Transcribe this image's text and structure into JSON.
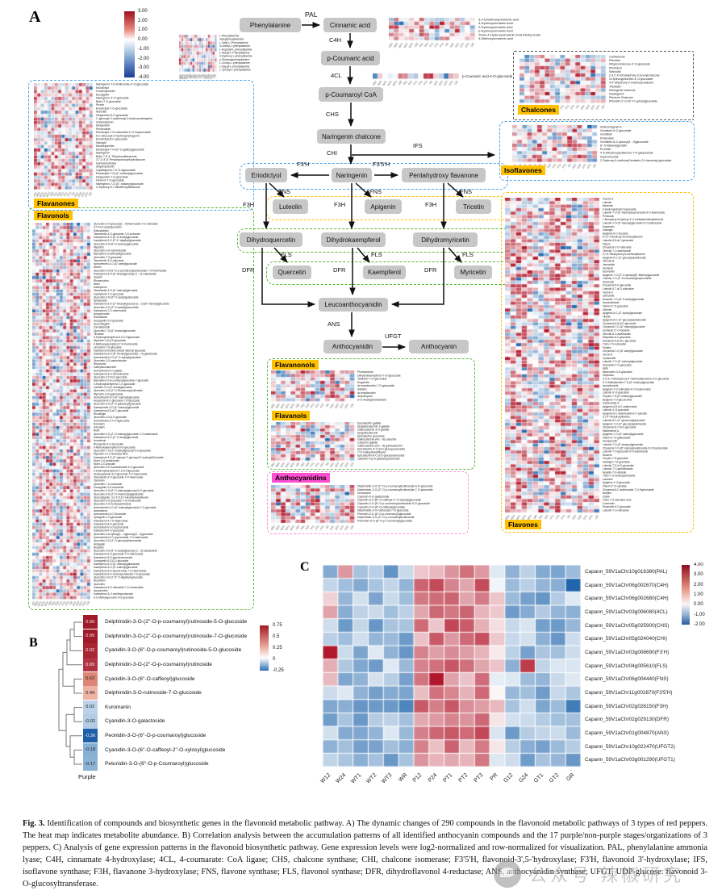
{
  "samples": [
    "W12",
    "W24",
    "WT1",
    "WT2",
    "WT3",
    "WR",
    "P12",
    "P24",
    "PT1",
    "PT2",
    "PT3",
    "PR",
    "G12",
    "G24",
    "GT1",
    "GT2",
    "GR"
  ],
  "panel_a": {
    "label": "A",
    "colorbar_ticks": [
      "3.00",
      "2.00",
      "1.00",
      "0.00",
      "-1.00",
      "-2.00",
      "-3.00",
      "-4.00"
    ],
    "nodes": {
      "phenylalanine": "Phenylalanine",
      "cinnamic": "Cinnamic acid",
      "pcoumaric": "p-Coumaric acid",
      "pcoumaroyl": "p-Coumaroyl CoA",
      "nar_chalcone": "Naringenin chalcone",
      "eriodictyol": "Eriodictyol",
      "naringenin": "Naringenin",
      "pentahydroxy": "Pentahydroxy flavanone",
      "luteolin": "Luteolin",
      "apigenin": "Apigenin",
      "tricetin": "Tricetin",
      "dhq": "Dihydroquercetin",
      "dhk": "Dihydrokaempferol",
      "dhm": "Dihydromyricetin",
      "quercetin": "Quercetin",
      "kaempferol": "Kaempferol",
      "myricetin": "Myricetin",
      "leuco": "Leucoanthocyanidin",
      "anthocyanidin": "Anthocyanidin",
      "anthocyanin": "Anthocyanin"
    },
    "enzymes": {
      "pal": "PAL",
      "c4h": "C4H",
      "fourcl": "4CL",
      "chs": "CHS",
      "chi": "CHI",
      "ifs": "IFS",
      "f3ph": "F3'H",
      "f35h": "F3'5'H",
      "fns": "FNS",
      "f3h": "F3H",
      "fls": "FLS",
      "dfr": "DFR",
      "ans": "ANS",
      "ufgt": "UFGT"
    },
    "heatmaps": {
      "phenylalanine": {
        "rows": [
          "L-Phenylalanine",
          "Glycylphenylalanine",
          "L-Valyl-L-Phenylalanine",
          "N-Acetyl-L-phenylalanine",
          "L-Aspartyl-L-phenylalanine",
          "L-Alanyl-L-Phenylalanine",
          "3-Hydroxy-L-phenylalanine",
          "γ-Glutamylphenylalanine",
          "L-Leucyl-L-phenylalanine",
          "L-Glycyl-L-phenylalanine",
          "L-Tyrosyl-L-phenylalanine"
        ]
      },
      "cinnamic": {
        "rows": [
          "3,4-Dimethoxycinnamic acid",
          "3-Hydroxycinnamic Acid",
          "2-Hydroxycinnamic acid",
          "p-Hydroxycinnamic Acid",
          "Trans-4-Hydroxycinnamic Acid Methyl Ester",
          "4-Methoxycinnamic acid"
        ]
      },
      "pcoumaric_glucoside": {
        "rows": [
          "p-Coumaric acid-4-O-glucoside"
        ]
      },
      "flavanones": {
        "title": "Flavanones",
        "rows": [
          "Naringenin-7-O-Rutinoside-4'-O-glucoside",
          "Eriodictyol",
          "Choerospondin",
          "Eucalyptin",
          "Naringenin-4'-O-glucoside",
          "Butin-7-O-glucoside",
          "Prunin",
          "Eriodictyol-7-O-glucoside",
          "Narirutin",
          "Hesperetin-5-O-glucoside",
          "C-glucosyl-C-arabinosyl-2-hydroxynaringenin",
          "Isohemiphloin",
          "Hesperetin",
          "Persicoside",
          "Eriodictyol-7-O-rutinoside-4'-O-Sophoroside",
          "6-C-Glucosyl-2-Hydroxynaringenin",
          "Eriodictyol-8-C-glucoside",
          "Naringin",
          "Neohesperidin",
          "Eriodictyol-7-O-(6''-O-galloyl)glucoside",
          "Naringenin",
          "Butin 7,3',4'-Trihydroxyflavanone",
          "3,7,3',4',5'-Pentahydroxydihydroflavone",
          "Homoeriodictyol",
          "dihydroluteolin",
          "Liquiritigenin-7,4'-O-diglucoside",
          "Eriodictyol-7-O-(6''-malonyl)glucoside",
          "Hesperetin-7-O-glucoside",
          "Farrerol-7-O-glucoside",
          "Naringenin-7-O-(6''-malonyl)glucoside",
          "4'-Hydroxy-5,7-dimethoxyflavanone"
        ]
      },
      "flavonols": {
        "title": "Flavonols",
        "rows": [
          "Quercetin-3-O-glucosyl(1→4)rhamnoside-7-O-rutinoside",
          "3,7-Di-O-acetylquercetin",
          "Natsudaidain",
          "Tamarixetin-3-O-glucoside-7-O-sulfonate",
          "Kaempferol-3-O-(6''-O-acetyl)glucoside",
          "Kaempferol-3-O-(2'',6''-digalloyl)glucoside",
          "Quercetin-3-O-(6''-O-acetoxy)glucoside",
          "Myricitrin",
          "Quercetin-3-O-robinobioside",
          "kaempferol-3-caffeoyldiglucoside",
          "Quercetin-7-O-glucoside",
          "Tamarixetin-3-O-rutinoside",
          "Isorhamnetin-3-O-(6''-acetyl)glucoside",
          "Afzelin",
          "Quercetin-3-O-(6''-O-p-coumaroyl)sophoroside-7-O-rhamnoside",
          "Kaempferol-3-O-(6''-Acetyl)glucosyl-(1→3)-Galactoside",
          "Hyperin",
          "Rhamnocitrin",
          "Morin",
          "Kaempferol",
          "Tamarixetin-3-O-(6''-malonyl)glucoside",
          "Kaempferol-7-O-glucoside",
          "Quercetin-3-O-(6''-O-acetyl)galactoside",
          "Spiraeoside",
          "Kaempferol-3-O-(2''-feruloyl)glucosyl-(1→2)-(6''-malonyl)glucoside",
          "Quercetin-3-O-(2''-O-acetyl)glucuronide",
          "Kaempferol-7-O-rhamnoside",
          "Isohyperoside",
          "Rotundianin",
          "Gossypetin-3-O-glucoside",
          "Quercetagitrin",
          "Cannabiscitrin",
          "Quercetin-7-O-(6''-malonyl)glucoside",
          "Tiliroside",
          "6-Hydroxykaempferol-3,6-O-Diglucoside",
          "Myricetin-3-O-β-D-glucoside",
          "6-Methoxykaempferol-7-O-rhamnoside",
          "Limocitrin-7-O-glucoside",
          "Kaempferol feruloyl xylosyl malonyl glucoside",
          "Kaempferol-3-O-(6''-Feruloyl)glucosyl(1→4)-galactoside",
          "Isorhamnetin-3-O-(2''-O-xylosyl)glucoside",
          "Quercetin-3-O-sambubioside",
          "Reynoutrin",
          "Galloylisorhamnetin",
          "Isorhamnetin-3-O-gallate",
          "Kaempferol-3-O-sambubioside",
          "Quercetin-3,7-Di-O-glucoside",
          "kaempferol-3-p-coumaroylglucoside-7-glucoside",
          "6-Hydroxykaempferol-7-O-glucoside",
          "Laricitrin-3-O-(6''-acetyl)glucoside",
          "Quercetin-3-O-(2''-O-Rhamnosyl)rutinoside",
          "Myricetin-3-O-galactoside",
          "Isorhamnetin-3-O-(6''-malonyl)glucoside",
          "Hesperetin-8-C-glucoside-7-O-glucoside",
          "Quercetin-3-O-(2''-O-galactosyl)glucoside",
          "Kaempferide-3-O-(6''-malonyl)glucoside",
          "Kaempferol-6,8-di-C-glucoside",
          "Rhodiolgin",
          "Quercetin-3-O-β-D-glucoside",
          "Isorhamnetin-3,7-O-diglucoside",
          "Robinetin",
          "Avicularin",
          "Rutin",
          "Quercetin-3-O-(2''-O-malonyl)glucoside-7-O-arabinoside",
          "Kaempferol-3-O-(2''-O-acetyl)glucoside",
          "Amurensin",
          "Rhamnetin-3-O-Glucoside",
          "6-Methoxykaempferol-3-O-glucoside",
          "Quercetin-7-O-(2''-malonyl)glucosyl-5-O-glucoside",
          "Myricetin-3,7,3'-trimethyl ether",
          "Kaempferol-3-O-(2''-apiosyl-4''-glucosyl-6''-malonyl)Glucoside",
          "Morin-3-O-arabinoside",
          "Morin-3-O-lyxoside",
          "Quercetin-3-O-Sambubioside-5-O-glucoside",
          "6-Hydroxykaempferol-7,6-O-Diglucoside",
          "Sexangularetin-3-O-glucoside-7-O-rhamnoside",
          "Tamarixetin-3-O-glucoside-7-O-rhamnoside",
          "Tamarixin",
          "Quercetin-7-O-rutinoside",
          "Gossypetin-3-O-rutinoside",
          "Quercetin-3-O-(6''-O-malonyl)glucosyl-5-O-glucoside",
          "Quercetin-3-O-(2''-O-rhamnosyl)galactoside",
          "Quercetagetin, 3,3',4',5,6,7-Hexahydroxyflavone",
          "Quercetin-3-O-glucoside-7-O-rhamnoside",
          "Quercetin-3-O-neohesperidoside",
          "Isorhamnetin-3-O-(6''-malonyl)glucoside-7-O-glucoside",
          "Isotamarixin",
          "Isorhamnetin-3-O-Glucoside",
          "Syringetin-3-O-glucoside",
          "Kaempferol-3,7-O-diglucoside",
          "Kaempferol-3-O-glucoside",
          "Isorhamnetin-3-O-sophoroside",
          "Kaempferol-4'-O-glucoside",
          "Quercetin-3-O-xylosyl(1→2)glucosyl(1→2)glucoside",
          "Isorhamnetin-3-O-sophoroside-7-O-rhamnoside",
          "Quercetin-3-O-(4''-O-glucosyl)rhamnoside",
          "Astragalin",
          "Brassicin",
          "Quercetin-3-O-(6''-O-acetyl)glucosyl-(1→3)-Galactoside",
          "Kaempferol-3-O-glucoside-7-O-rhamnoside",
          "Kaempferol-3-O-glucorhamnoside",
          "Gossypetin-8-O-β-D-glucoside",
          "Kaempferol-3-O-(6''-malonyl)galactoside",
          "Kaempferol-3-O-(6''-malonyl)glucoside",
          "Kaempferol-3-O-sophoroside-7-O-rhamnoside",
          "Kaempferol-3-O-neohesperidoside-7-O-glucoside",
          "Quercetin-3-O-(2'',6''-O-digalloyl)-glucoside",
          "Nicotiflorin",
          "Quercitrin",
          "Kaempferol-3-O-rutinoside-7-O-rhamnoside",
          "Isoquercitrin",
          "Kaempferol-3-O-neohesperidoside",
          "6-C-Methylquercetin-3-O-glucoside"
        ]
      },
      "chalcones": {
        "title": "Chalcones",
        "rows": [
          "Carthamone",
          "Phloretin",
          "Dihydrochalcone-4'-O-glucoside",
          "Phloridzin",
          "Sieboldin",
          "2,4,2',4'-tetrahydroxy-3'-prenylchalcone",
          "3-Hydroxyphloretin-4'-O-glucoside",
          "4,4'-dihydroxy-2'-methoxychalcone",
          "Trilobatin",
          "Naringenin chalcone",
          "Davidigenin",
          "Phlorizin Chalcone",
          "Phloretin-2'-O-(6''-O-xylosyl)glucoside"
        ]
      },
      "isoflavones": {
        "title": "Isoflavones",
        "rows": [
          "Iristectorigenin A",
          "Genistein-8-C-glucoside",
          "Genistein",
          "Pratensein",
          "Genistein-8-C-apiosyl(1→6)glucoside",
          "6''-O-Malonylgenistin",
          "Prunetin",
          "4',5-Dihydroxyisoflavone-7-O-galactoside",
          "Sophoricoside",
          "2'-Hydroxy-5-methoxyGenistein-O-rhamnosyl-glucoside"
        ]
      },
      "flavones": {
        "title": "Flavones",
        "rows": [
          "Vicenin-3",
          "Luteolin",
          "Mearnsin",
          "6-Hydroxyluteolin 5-glucoside",
          "Luteolin-7-O-(6''-malonyl)sophoroside-5-O-arabinoside",
          "Persicarin",
          "7-Benzyloxy-5-hydroxy-3',4'-methylenedioxyflavonoid",
          "Luteolin-7-O-(6''-malonyl)glucoside-5-O-arabinoside",
          "Saponarin",
          "Galangin",
          "Apigenin-6-C-fucoside",
          "5,7,2'-Trihydroxy-6-methoxyflavone",
          "Luteolin-6,8-di-C-glucoside",
          "Vitexin",
          "Chryseriol-7-O-rutinoside",
          "Orientin-7-O-arabinoside",
          "5,7,8-Tetrahydroxy-6-methoxyflavone",
          "Apigenin-6-C-(2''-glucosyl)arabinoside",
          "Orientin B",
          "Jaceosidin",
          "Isovitexin",
          "Isoorientin",
          "Apigenin-7-O-(2''-O-apiosyl)(6''-Malonyl)glucoside",
          "Luteolin-7-O-(2''-O-rhamnosyl)sophoroside",
          "Diosmetin",
          "Chryseriol-5-O-glucoside",
          "Luteolin-5,7-di-O-rutinoside",
          "Vicenin-2",
          "cetinoside",
          "Acacetin-7-O-(6''-O-acetyl)glucoside",
          "Isoschaftoside",
          "Vitexin-2''-O-glucoside",
          "Orientin",
          "Apigenin-6-C-(2''-xylosyl)glucoside",
          "Tilianin",
          "Apigenin-8-C-(2''-glucosyl)arabinoside",
          "Chryseriol-6,8-di-C-glucoside",
          "Chryseriol-7-O-(6''-malonyl)glucoside",
          "Isovitexin-2''-O-xyloside",
          "Orientin-6-C-arabinoside",
          "Hispidulin-6-C-glucoside",
          "Isoluteolin-6,8-di-C-glucoside",
          "Tricin-7-O-rutinoside",
          "Pedalin",
          "Chryseriol-7-O-(6''-acetyl)glucoside",
          "Oroxin A",
          "Cynaroside",
          "Luteolin-7-O-(6''-malonyl)glucoside",
          "Isoorientin-7-O-glucoside",
          "Apiin",
          "Mearnsetin-3-O-glucoside",
          "Hispidulin",
          "3',5',5,7-Tetrahydroxy-4'-methoxyflavanone-3'-O-glucoside",
          "3'-O-Methyltricetin-7-O-(6''-malonyl)glucoside",
          "Isocarlinoside",
          "Apigenin-7-O-rutinoside-4'-O-Sophoroside",
          "Luteolin-3'-O-glucoside",
          "Chrysin-7-O-(6''-malonyl)glucoside",
          "Apigenin-7-O-glucuronide",
          "Capsicoside A",
          "Apigenin-6,8-di-C-arabinoside",
          "Luteolin-4'-O-glucoside",
          "Apigenin-6-C-arabinoside-8-C-xyloside",
          "3,7,4'-Trihydroxyflavone",
          "Luteolin-6-C-(2''-glucuronyl)glucoside",
          "Apigenin-7-O-(2''-glucosyl)arabinoside",
          "Chryseriol-5,7-di-O-glucoside",
          "Madreselvin A",
          "Apigenin-7-O-(6''-malonyl)glucoside",
          "Vitexin-2''-O-galactoside",
          "Isosaponarin",
          "Luteolin-7-O-(6''-sinapoyl)glucoside",
          "Chryseriol-7-O-(6''-malonyl)arabinoside-5-O-Sophoroside",
          "Luteolin-7-O-glucoside-5-O-arabinoside",
          "Diosmin",
          "Chrysin-7-O-glucoside",
          "Galangin-7-O-glucoside",
          "Luteolin-7,3'-di-O-glucoside",
          "Luteolin-7-O-gentiobioside",
          "Nepetin-7-O-alloside",
          "Tricin-7-O-neohesperidoside",
          "Lonicerin",
          "Apigenin-4'-O-glucoside",
          "Vitexin-2''-O-xyloside",
          "Chryseriol-8-C-arabinoside-7-O-Sophoroside",
          "Nepitrin",
          "Cilarin",
          "Tricin-7-O-saccharic acid",
          "Cosmosiin",
          "Diosmetin-6-C-glucoside",
          "Luteolin-7-O-rutinoside"
        ]
      },
      "flavanonols": {
        "title": "Flavanonols",
        "rows": [
          "Pinobanksin",
          "Dihydrokaempferol-7-O-glucoside",
          "Taxifolin-7-O-glucoside",
          "Engeletin",
          "Aromadendrin-7-O-glucoside",
          "Astilbin",
          "Aromadendrin",
          "Ampelopsin",
          "3-O-Acetylpinobanksin"
        ]
      },
      "flavanols": {
        "title": "Flavanols",
        "rows": [
          "Epicatechin gallate",
          "Epigallocatechin 3-gallate",
          "Gallocatechin 3-O-gallate",
          "Epigallocatechin",
          "Epicatechin glucoside",
          "Gallocatechin-(4α→8)-catechin",
          "Catechin gallate",
          "Gallocatechin-(4α→8)-gallocatechin",
          "Epicatechin-4'-O-β-D-glucopyranoside",
          "7-O-Galloyltricetiflavan",
          "Epicatechin-6-C-β-D-glucopyranoside",
          "catechin-4-β-D-galactopyranoside"
        ]
      },
      "anthocyanidins": {
        "title": "Anthocyanidins",
        "rows": [
          "Delphinidin-3-O-(2''-O-p-coumaroyl)rutinoside-5-O-glucoside",
          "Delphinidin-3-O-(2''-O-p-coumaroyl)rutinoside-7-O-glucoside",
          "Kuromanin",
          "Cyanidin-3-O-galactoside",
          "Cyanidin-3-O-(6''-O-caffeoyl-2''-O-xylosyl)glucoside",
          "Cyanidin-3-O-(6''-O-p-coumaroyl)rutinoside-5-O-glucoside",
          "Cyanidin-3-O-(6''-O-caffeoyl)glucoside",
          "Delphinidin-3-O-rutinoside-7-O-glucoside",
          "Peonidin-3-O-(6''-O-p-coumaroyl)glucoside",
          "Delphinidin-3-O-(2''-O-p-coumaroyl)rutinoside",
          "Petunidin-3-O-(6''-O-p-Coumaroyl)glucoside"
        ]
      }
    }
  },
  "panel_b": {
    "label": "B",
    "xlabel": "Purple",
    "colorbar_ticks": [
      "0.75",
      "0.5",
      "0.25",
      "0",
      "-0.25"
    ],
    "rows": [
      {
        "value": "0.99",
        "color": "#9f1b27",
        "text": "#f2e6e6",
        "label": "Delphinidin-3-O-(2''-O-p-coumaroyl)rutinoside-5-O-glucoside"
      },
      {
        "value": "0.99",
        "color": "#9f1b27",
        "text": "#f2e6e6",
        "label": "Delphinidin-3-O-(2''-O-p-coumaroyl)rutinoside-7-O-glucoside"
      },
      {
        "value": "0.92",
        "color": "#a82532",
        "text": "#f2e6e6",
        "label": "Cyanidin-3-O-(6''-O-p-coumaroyl)rutinoside-5-O-glucoside"
      },
      {
        "value": "0.89",
        "color": "#b13240",
        "text": "#f2e6e6",
        "label": "Delphinidin-3-O-(2''-O-p-coumaroyl)rutinoside"
      },
      {
        "value": "0.62",
        "color": "#dd8577",
        "text": "#222222",
        "label": "Cyanidin-3-O-(6''-O-caffeoyl)glucoside"
      },
      {
        "value": "0.49",
        "color": "#efb3a6",
        "text": "#222222",
        "label": "Delphinidin-3-O-rutinoside-7-O-glucoside"
      },
      {
        "value": "0.02",
        "color": "#bdd2e8",
        "text": "#222222",
        "label": "Kuromanin"
      },
      {
        "value": "-0.01",
        "color": "#b3cbe4",
        "text": "#222222",
        "label": "Cyanidin-3-O-galactoside"
      },
      {
        "value": "-0.36",
        "color": "#1f5fa8",
        "text": "#eef2f7",
        "label": "Peonidin-3-O-(6''-O-p-coumaroyl)glucoside"
      },
      {
        "value": "-0.18",
        "color": "#86afd4",
        "text": "#222222",
        "label": "Cyanidin-3-O-(6''-O-caffeoyl-2''-O-xylosyl)glucoside"
      },
      {
        "value": "-0.17",
        "color": "#8cb3d6",
        "text": "#222222",
        "label": "Petunidin-3-O-(6''-O-p-Coumaroyl)glucoside"
      }
    ]
  },
  "panel_c": {
    "label": "C",
    "colorbar_ticks": [
      "4.00",
      "3.00",
      "2.00",
      "1.00",
      "0.00",
      "-1.00",
      "-2.00"
    ],
    "genes": [
      "Capann_59V1aChr10g016380(PAL)",
      "Capann_59V1aChr06g002670(C4H)",
      "Capann_59V1aChr06g002680(C4H)",
      "Capann_59V1aChr03g006080(4CL)",
      "Capann_59V1aChr05g025900(CHS)",
      "Capann_59V1aChr05g024040(CHI)",
      "Capann_59V1aChr03g008690(F3'H)",
      "Capann_59V1aChr04g005610(FLS)",
      "Capann_59V1aChr06g004440(FNS)",
      "Capann_59V1aChr11g002870(F3'5'H)",
      "Capann_59V1aChr02g028150(F3H)",
      "Capann_59V1aChr02g029130(DFR)",
      "Capann_59V1aChr01g004870(ANS)",
      "Capann_59V1aChr10g022470(UFGT2)",
      "Capann_59V1aChr03g001290(UFGT1)"
    ]
  },
  "caption": {
    "fig": "Fig. 3.",
    "text": "Identification of compounds and biosynthetic genes in the flavonoid metabolic pathway. A) The dynamic changes of 290 compounds in the flavonoid metabolic pathways of 3 types of red peppers. The heat map indicates metabolite abundance. B) Correlation analysis between the accumulation patterns of all identified anthocyanin compounds and the 17 purple/non-purple stages/organizations of 3 peppers. C) Analysis of gene expression patterns in the flavonoid biosynthetic pathway. Gene expression levels were log2-normalized and row-normalized for visualization. PAL, phenylalanine ammonia lyase; C4H, cinnamate 4-hydroxylase; 4CL, 4-coumarate: CoA ligase; CHS, chalcone synthase; CHI, chalcone isomerase; F3'5'H, flavonoid-3',5-'hydroxylase; F3'H, flavonoid 3'-hydroxylase; IFS, isoflavone synthase; F3H, flavanone 3-hydroxylase; FNS, flavone synthase; FLS, flavonol synthase; DFR, dihydroflavonol 4-reductase; ANS, anthocyanidin synthase; UFGT, UDP-glucose: flavonoid 3-O-glucosyltransferase."
  },
  "watermark": {
    "t1": "公众号",
    "t2": "辣椒研究"
  },
  "colors": {
    "heat_max": "#b2182b",
    "heat_min": "#2166ac",
    "node_bg": "#c7c7c7",
    "badge_yellow": "#ffc000",
    "badge_pink": "#ff4fd0"
  }
}
